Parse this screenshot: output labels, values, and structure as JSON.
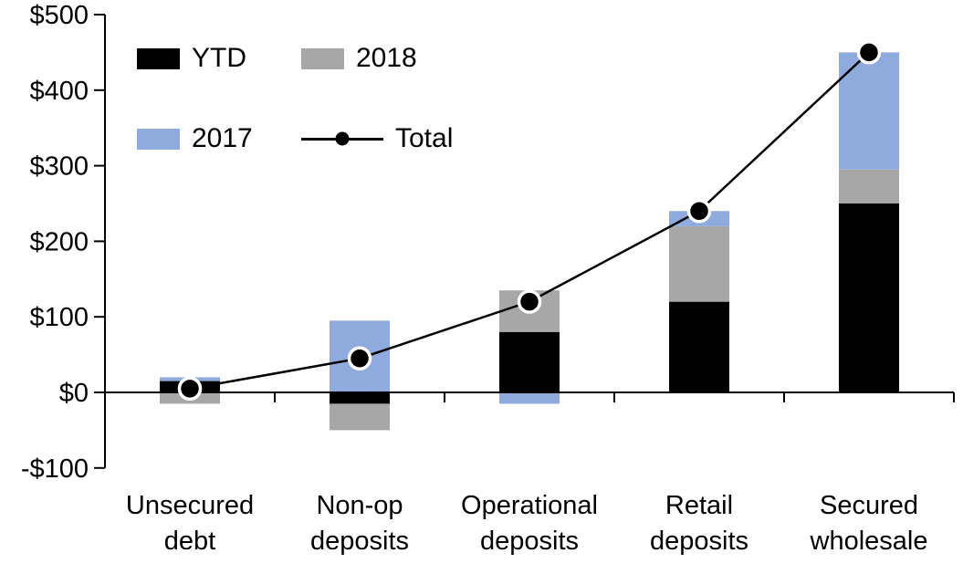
{
  "chart_data": {
    "type": "bar",
    "subtype": "stacked-bars-with-total-line",
    "title": "",
    "xlabel": "",
    "ylabel": "",
    "categories": [
      "Unsecured debt",
      "Non-op deposits",
      "Operational deposits",
      "Retail deposits",
      "Secured wholesale"
    ],
    "category_label_lines": [
      [
        "Unsecured",
        "debt"
      ],
      [
        "Non-op",
        "deposits"
      ],
      [
        "Operational",
        "deposits"
      ],
      [
        "Retail",
        "deposits"
      ],
      [
        "Secured",
        "wholesale"
      ]
    ],
    "series": [
      {
        "name": "YTD",
        "type": "bar",
        "color": "#000000",
        "values": [
          15,
          -15,
          80,
          120,
          250
        ]
      },
      {
        "name": "2018",
        "type": "bar",
        "color": "#A7A7A7",
        "values": [
          -15,
          -35,
          55,
          100,
          45
        ]
      },
      {
        "name": "2017",
        "type": "bar",
        "color": "#8FAADC",
        "values": [
          5,
          95,
          -15,
          20,
          155
        ]
      },
      {
        "name": "Total",
        "type": "line",
        "color": "#000000",
        "marker": "circle-white-ring",
        "values": [
          5,
          45,
          120,
          240,
          450
        ]
      }
    ],
    "ylim": [
      -100,
      500
    ],
    "yticks": [
      {
        "value": 500,
        "label": "$500"
      },
      {
        "value": 400,
        "label": "$400"
      },
      {
        "value": 300,
        "label": "$300"
      },
      {
        "value": 200,
        "label": "$200"
      },
      {
        "value": 100,
        "label": "$100"
      },
      {
        "value": 0,
        "label": "$0"
      },
      {
        "value": -100,
        "label": "-$100"
      }
    ],
    "grid": false,
    "legend_position": "top-left",
    "axis_color": "#000000",
    "background": "#FFFFFF"
  }
}
